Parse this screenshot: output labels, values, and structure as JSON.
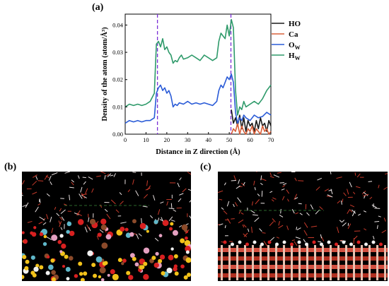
{
  "labels": {
    "a": "(a)",
    "b": "(b)",
    "c": "(c)"
  },
  "chart_data": {
    "type": "line",
    "title": "",
    "xlabel": "Distance in Z direction (Å)",
    "ylabel": "Density of the atom (atom/Å³)",
    "xlim": [
      0,
      70
    ],
    "ylim": [
      0,
      0.044
    ],
    "xticks": [
      0,
      10,
      20,
      30,
      40,
      50,
      60,
      70
    ],
    "yticks": [
      0.0,
      0.01,
      0.02,
      0.03,
      0.04
    ],
    "ytick_labels": [
      "0.00",
      "0.01",
      "0.02",
      "0.03",
      "0.04"
    ],
    "vlines": [
      {
        "x": 15.5,
        "color": "#7b2fd6",
        "style": "dashed"
      },
      {
        "x": 50.8,
        "color": "#7b2fd6",
        "style": "dashed"
      }
    ],
    "legend_position": "top-right",
    "series": [
      {
        "name": "HO",
        "color": "#1a1a1a",
        "x": [
          51,
          52,
          53,
          54,
          55,
          56,
          57,
          58,
          59,
          60,
          61,
          62,
          63,
          64,
          65,
          66,
          67,
          68,
          69,
          70
        ],
        "y": [
          0.009,
          0.004,
          0.006,
          0.003,
          0.007,
          0.002,
          0.006,
          0.001,
          0.005,
          0.003,
          0.004,
          0.001,
          0.005,
          0.002,
          0.006,
          0.003,
          0.004,
          0.001,
          0.005,
          0.003
        ]
      },
      {
        "name": "Ca",
        "color": "#d9603b",
        "x": [
          51,
          52,
          53,
          54,
          55,
          56,
          57,
          58,
          59,
          60,
          61,
          62,
          63,
          64,
          65,
          66,
          67,
          68,
          69,
          70
        ],
        "y": [
          0.0,
          0.002,
          0.001,
          0.004,
          0.0,
          0.003,
          0.001,
          0.0,
          0.002,
          0.001,
          0.003,
          0.0,
          0.002,
          0.001,
          0.0,
          0.003,
          0.001,
          0.002,
          0.0,
          0.001
        ]
      },
      {
        "name": "OW",
        "label_main": "O",
        "label_sub": "W",
        "color": "#2a5bd7",
        "x": [
          0,
          2,
          4,
          6,
          8,
          10,
          12,
          14,
          15,
          16,
          17,
          18,
          19,
          20,
          21,
          22,
          23,
          24,
          25,
          26,
          28,
          30,
          32,
          34,
          36,
          38,
          40,
          42,
          44,
          45,
          46,
          47,
          48,
          49,
          50,
          51,
          52,
          53,
          54,
          55,
          56,
          57,
          58,
          60,
          62,
          64,
          66,
          68,
          70
        ],
        "y": [
          0.004,
          0.005,
          0.0045,
          0.005,
          0.0045,
          0.005,
          0.005,
          0.006,
          0.015,
          0.017,
          0.018,
          0.016,
          0.017,
          0.015,
          0.016,
          0.014,
          0.01,
          0.011,
          0.0105,
          0.0115,
          0.011,
          0.012,
          0.011,
          0.0115,
          0.011,
          0.0115,
          0.011,
          0.0105,
          0.012,
          0.016,
          0.018,
          0.017,
          0.019,
          0.021,
          0.02,
          0.022,
          0.019,
          0.008,
          0.004,
          0.006,
          0.005,
          0.007,
          0.006,
          0.005,
          0.007,
          0.006,
          0.0065,
          0.008,
          0.007
        ]
      },
      {
        "name": "HW",
        "label_main": "H",
        "label_sub": "W",
        "color": "#2e9a6a",
        "x": [
          0,
          2,
          4,
          6,
          8,
          10,
          12,
          14,
          15,
          16,
          17,
          18,
          19,
          20,
          21,
          22,
          23,
          24,
          25,
          26,
          27,
          28,
          30,
          32,
          34,
          36,
          38,
          40,
          42,
          44,
          45,
          46,
          47,
          48,
          49,
          50,
          51,
          52,
          53,
          54,
          55,
          56,
          57,
          58,
          60,
          62,
          64,
          66,
          68,
          70
        ],
        "y": [
          0.01,
          0.011,
          0.0105,
          0.011,
          0.0105,
          0.011,
          0.012,
          0.015,
          0.033,
          0.034,
          0.032,
          0.035,
          0.031,
          0.032,
          0.03,
          0.029,
          0.026,
          0.027,
          0.0265,
          0.028,
          0.029,
          0.0275,
          0.028,
          0.029,
          0.028,
          0.027,
          0.029,
          0.028,
          0.027,
          0.028,
          0.034,
          0.037,
          0.036,
          0.035,
          0.04,
          0.036,
          0.042,
          0.039,
          0.016,
          0.007,
          0.01,
          0.009,
          0.012,
          0.01,
          0.011,
          0.012,
          0.011,
          0.013,
          0.016,
          0.018
        ]
      }
    ]
  }
}
